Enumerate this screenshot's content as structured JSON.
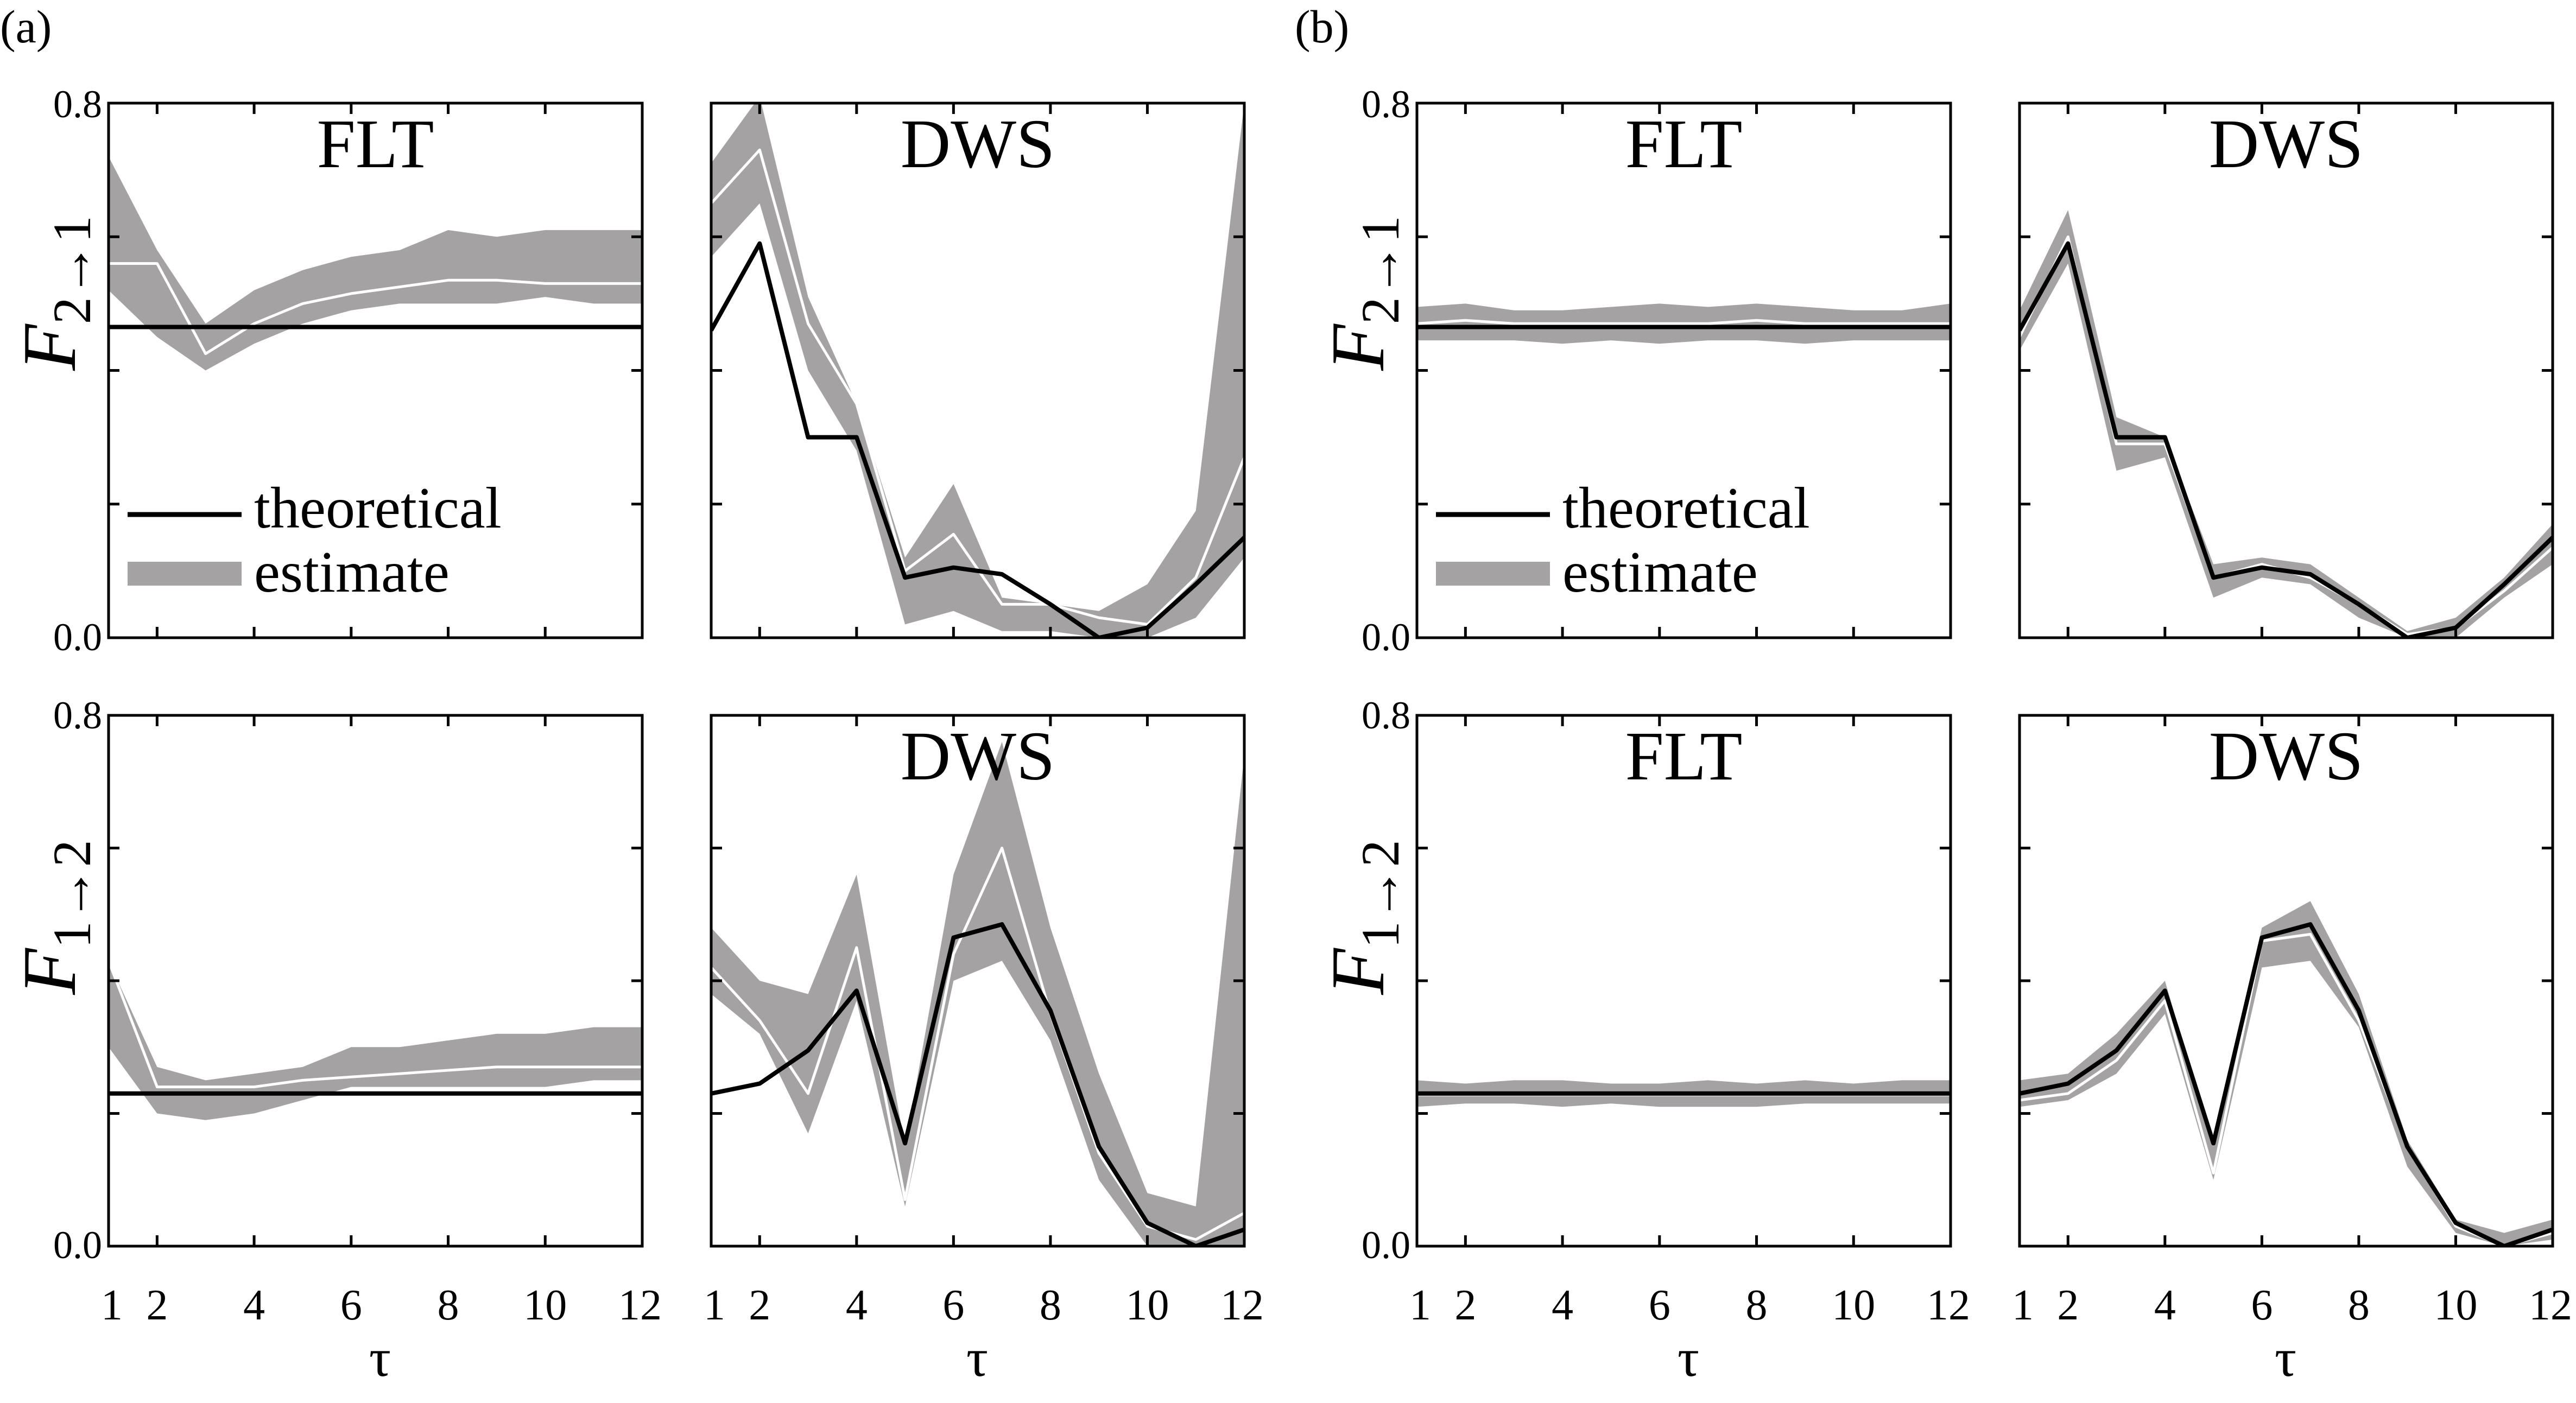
{
  "figure": {
    "panel_labels": [
      "(a)",
      "(b)"
    ],
    "legend": {
      "theoretical": "theoretical",
      "estimate": "estimate"
    },
    "colors": {
      "band": "#a4a2a2",
      "theory": "#000000",
      "mean": "#ffffff",
      "frame": "#000000"
    },
    "x_label": "τ",
    "y_label_top": {
      "main": "F",
      "sub": "2→1"
    },
    "y_label_bottom": {
      "main": "F",
      "sub": "1→2"
    },
    "y_tick_labels": [
      "0.0",
      "0.8"
    ],
    "x_tick_labels": [
      "1",
      "2",
      "4",
      "6",
      "8",
      "10",
      "12"
    ]
  },
  "chart_data": [
    {
      "type": "line",
      "id": "a-top-flt",
      "title": "FLT",
      "xlim": [
        1,
        12
      ],
      "ylim": [
        0,
        0.8
      ],
      "x": [
        1,
        2,
        3,
        4,
        5,
        6,
        7,
        8,
        9,
        10,
        11,
        12
      ],
      "theoretical": [
        0.465,
        0.465,
        0.465,
        0.465,
        0.465,
        0.465,
        0.465,
        0.465,
        0.465,
        0.465,
        0.465,
        0.465
      ],
      "estimate_mean": [
        0.56,
        0.56,
        0.425,
        0.47,
        0.5,
        0.515,
        0.525,
        0.535,
        0.535,
        0.53,
        0.53,
        0.53
      ],
      "estimate_low": [
        0.52,
        0.45,
        0.4,
        0.44,
        0.47,
        0.49,
        0.5,
        0.5,
        0.5,
        0.51,
        0.5,
        0.5
      ],
      "estimate_high": [
        0.72,
        0.58,
        0.47,
        0.52,
        0.55,
        0.57,
        0.58,
        0.61,
        0.6,
        0.61,
        0.61,
        0.61
      ]
    },
    {
      "type": "line",
      "id": "a-top-dws",
      "title": "DWS",
      "xlim": [
        1,
        12
      ],
      "ylim": [
        0,
        0.8
      ],
      "x": [
        1,
        2,
        3,
        4,
        5,
        6,
        7,
        8,
        9,
        10,
        11,
        12
      ],
      "theoretical": [
        0.46,
        0.59,
        0.3,
        0.3,
        0.09,
        0.105,
        0.095,
        0.05,
        0.0,
        0.015,
        0.08,
        0.15
      ],
      "estimate_mean": [
        0.65,
        0.73,
        0.47,
        0.35,
        0.1,
        0.155,
        0.05,
        0.05,
        0.03,
        0.02,
        0.09,
        0.27
      ],
      "estimate_low": [
        0.57,
        0.65,
        0.4,
        0.28,
        0.02,
        0.04,
        0.01,
        0.01,
        0.0,
        0.0,
        0.03,
        0.12
      ],
      "estimate_high": [
        0.71,
        0.81,
        0.51,
        0.35,
        0.12,
        0.23,
        0.06,
        0.05,
        0.04,
        0.08,
        0.19,
        0.8
      ]
    },
    {
      "type": "line",
      "id": "a-bottom-flt",
      "title": "",
      "xlim": [
        1,
        12
      ],
      "ylim": [
        0,
        0.8
      ],
      "x": [
        1,
        2,
        3,
        4,
        5,
        6,
        7,
        8,
        9,
        10,
        11,
        12
      ],
      "theoretical": [
        0.23,
        0.23,
        0.23,
        0.23,
        0.23,
        0.23,
        0.23,
        0.23,
        0.23,
        0.23,
        0.23,
        0.23
      ],
      "estimate_mean": [
        0.43,
        0.24,
        0.24,
        0.24,
        0.25,
        0.255,
        0.26,
        0.265,
        0.27,
        0.27,
        0.27,
        0.27
      ],
      "estimate_low": [
        0.3,
        0.2,
        0.19,
        0.2,
        0.22,
        0.24,
        0.24,
        0.24,
        0.24,
        0.24,
        0.25,
        0.25
      ],
      "estimate_high": [
        0.43,
        0.27,
        0.25,
        0.26,
        0.27,
        0.3,
        0.3,
        0.31,
        0.32,
        0.32,
        0.33,
        0.33
      ]
    },
    {
      "type": "line",
      "id": "a-bottom-dws",
      "title": "DWS",
      "xlim": [
        1,
        12
      ],
      "ylim": [
        0,
        0.8
      ],
      "x": [
        1,
        2,
        3,
        4,
        5,
        6,
        7,
        8,
        9,
        10,
        11,
        12
      ],
      "theoretical": [
        0.23,
        0.245,
        0.295,
        0.385,
        0.155,
        0.465,
        0.485,
        0.355,
        0.15,
        0.035,
        0.0,
        0.025
      ],
      "estimate_mean": [
        0.42,
        0.34,
        0.23,
        0.45,
        0.07,
        0.44,
        0.6,
        0.35,
        0.14,
        0.03,
        0.01,
        0.05
      ],
      "estimate_low": [
        0.38,
        0.32,
        0.17,
        0.37,
        0.06,
        0.4,
        0.43,
        0.31,
        0.1,
        0.0,
        0.0,
        0.0
      ],
      "estimate_high": [
        0.48,
        0.4,
        0.38,
        0.56,
        0.15,
        0.56,
        0.76,
        0.48,
        0.26,
        0.08,
        0.06,
        0.74
      ]
    },
    {
      "type": "line",
      "id": "b-top-flt",
      "title": "FLT",
      "xlim": [
        1,
        12
      ],
      "ylim": [
        0,
        0.8
      ],
      "x": [
        1,
        2,
        3,
        4,
        5,
        6,
        7,
        8,
        9,
        10,
        11,
        12
      ],
      "theoretical": [
        0.465,
        0.465,
        0.465,
        0.465,
        0.465,
        0.465,
        0.465,
        0.465,
        0.465,
        0.465,
        0.465,
        0.465
      ],
      "estimate_mean": [
        0.47,
        0.475,
        0.47,
        0.47,
        0.47,
        0.47,
        0.47,
        0.475,
        0.47,
        0.47,
        0.47,
        0.47
      ],
      "estimate_low": [
        0.445,
        0.445,
        0.445,
        0.44,
        0.445,
        0.44,
        0.445,
        0.445,
        0.44,
        0.445,
        0.445,
        0.445
      ],
      "estimate_high": [
        0.495,
        0.5,
        0.49,
        0.49,
        0.495,
        0.5,
        0.495,
        0.5,
        0.495,
        0.49,
        0.49,
        0.5
      ]
    },
    {
      "type": "line",
      "id": "b-top-dws",
      "title": "DWS",
      "xlim": [
        1,
        12
      ],
      "ylim": [
        0,
        0.8
      ],
      "x": [
        1,
        2,
        3,
        4,
        5,
        6,
        7,
        8,
        9,
        10,
        11,
        12
      ],
      "theoretical": [
        0.46,
        0.59,
        0.3,
        0.3,
        0.09,
        0.105,
        0.095,
        0.05,
        0.0,
        0.015,
        0.08,
        0.15
      ],
      "estimate_mean": [
        0.45,
        0.6,
        0.29,
        0.29,
        0.09,
        0.11,
        0.09,
        0.05,
        0.005,
        0.015,
        0.07,
        0.135
      ],
      "estimate_low": [
        0.43,
        0.56,
        0.25,
        0.27,
        0.06,
        0.09,
        0.08,
        0.03,
        0.0,
        0.0,
        0.06,
        0.11
      ],
      "estimate_high": [
        0.49,
        0.64,
        0.33,
        0.3,
        0.11,
        0.12,
        0.11,
        0.06,
        0.01,
        0.03,
        0.09,
        0.17
      ]
    },
    {
      "type": "line",
      "id": "b-bottom-flt",
      "title": "FLT",
      "xlim": [
        1,
        12
      ],
      "ylim": [
        0,
        0.8
      ],
      "x": [
        1,
        2,
        3,
        4,
        5,
        6,
        7,
        8,
        9,
        10,
        11,
        12
      ],
      "theoretical": [
        0.23,
        0.23,
        0.23,
        0.23,
        0.23,
        0.23,
        0.23,
        0.23,
        0.23,
        0.23,
        0.23,
        0.23
      ],
      "estimate_mean": [
        0.228,
        0.228,
        0.228,
        0.228,
        0.228,
        0.228,
        0.228,
        0.228,
        0.228,
        0.228,
        0.228,
        0.228
      ],
      "estimate_low": [
        0.21,
        0.215,
        0.215,
        0.21,
        0.215,
        0.21,
        0.21,
        0.21,
        0.215,
        0.215,
        0.215,
        0.215
      ],
      "estimate_high": [
        0.25,
        0.245,
        0.25,
        0.25,
        0.245,
        0.245,
        0.25,
        0.245,
        0.25,
        0.245,
        0.25,
        0.25
      ]
    },
    {
      "type": "line",
      "id": "b-bottom-dws",
      "title": "DWS",
      "xlim": [
        1,
        12
      ],
      "ylim": [
        0,
        0.8
      ],
      "x": [
        1,
        2,
        3,
        4,
        5,
        6,
        7,
        8,
        9,
        10,
        11,
        12
      ],
      "theoretical": [
        0.23,
        0.245,
        0.295,
        0.385,
        0.155,
        0.465,
        0.485,
        0.355,
        0.15,
        0.035,
        0.0,
        0.025
      ],
      "estimate_mean": [
        0.22,
        0.23,
        0.28,
        0.37,
        0.11,
        0.46,
        0.47,
        0.34,
        0.15,
        0.03,
        0.0,
        0.02
      ],
      "estimate_low": [
        0.21,
        0.22,
        0.26,
        0.35,
        0.1,
        0.42,
        0.43,
        0.33,
        0.12,
        0.02,
        0.0,
        0.01
      ],
      "estimate_high": [
        0.25,
        0.26,
        0.32,
        0.4,
        0.15,
        0.48,
        0.52,
        0.38,
        0.16,
        0.04,
        0.02,
        0.04
      ]
    }
  ]
}
